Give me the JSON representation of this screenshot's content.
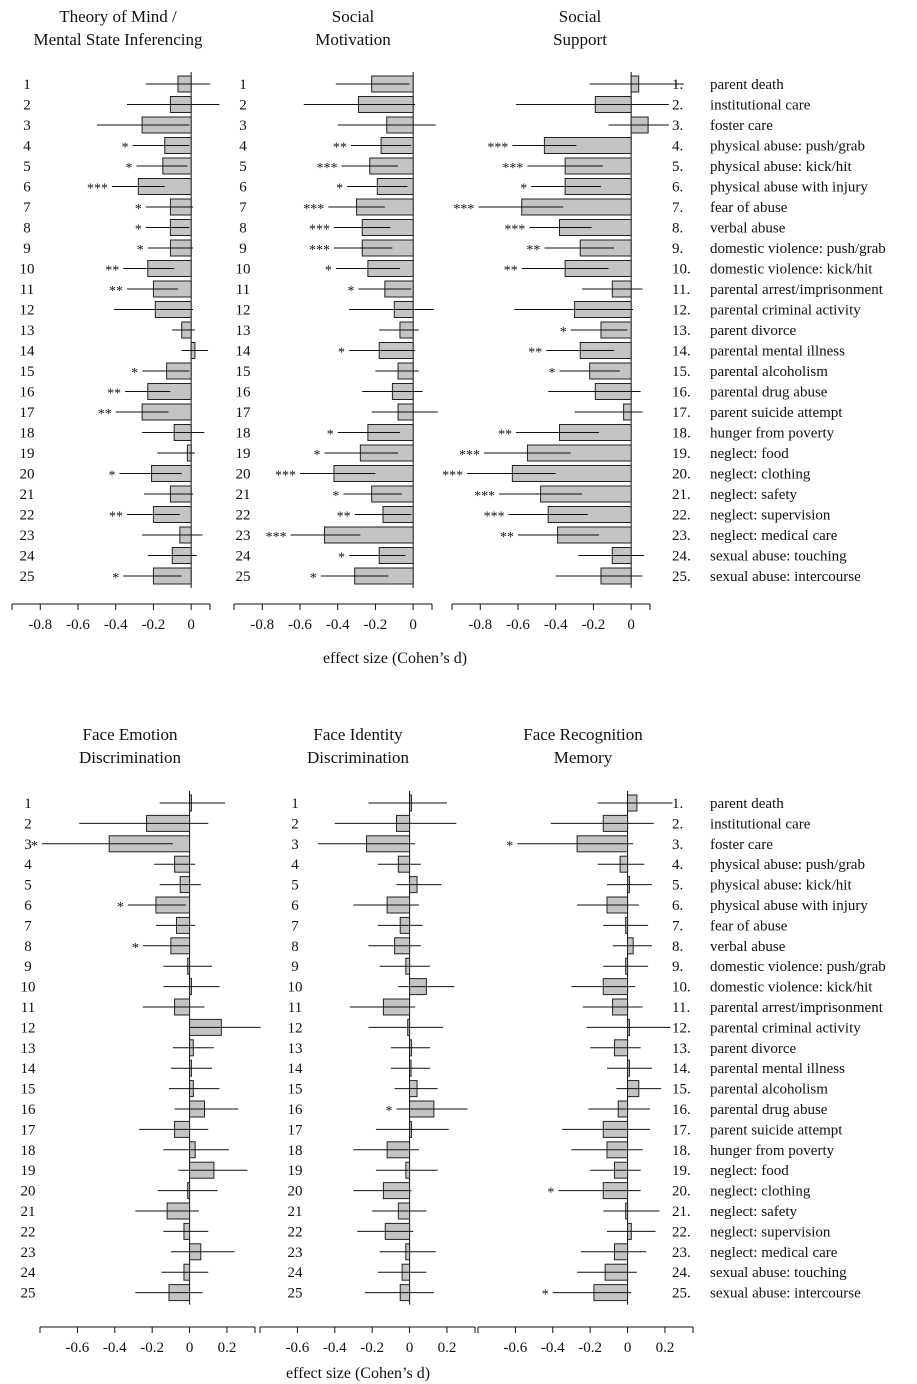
{
  "figure": {
    "top_xlabel": "effect size (Cohen’s d)",
    "bottom_xlabel": "effect size (Cohen’s d)"
  },
  "rows": [
    "1",
    "2",
    "3",
    "4",
    "5",
    "6",
    "7",
    "8",
    "9",
    "10",
    "11",
    "12",
    "13",
    "14",
    "15",
    "16",
    "17",
    "18",
    "19",
    "20",
    "21",
    "22",
    "23",
    "24",
    "25"
  ],
  "labels": [
    {
      "num": "1.",
      "text": "parent death"
    },
    {
      "num": "2.",
      "text": "institutional care"
    },
    {
      "num": "3.",
      "text": "foster care"
    },
    {
      "num": "4.",
      "text": "physical abuse: push/grab"
    },
    {
      "num": "5.",
      "text": "physical abuse: kick/hit"
    },
    {
      "num": "6.",
      "text": "physical abuse with injury"
    },
    {
      "num": "7.",
      "text": "fear of abuse"
    },
    {
      "num": "8.",
      "text": "verbal abuse"
    },
    {
      "num": "9.",
      "text": "domestic violence: push/grab"
    },
    {
      "num": "10.",
      "text": "domestic violence: kick/hit"
    },
    {
      "num": "11.",
      "text": "parental arrest/imprisonment"
    },
    {
      "num": "12.",
      "text": "parental criminal activity"
    },
    {
      "num": "13.",
      "text": "parent divorce"
    },
    {
      "num": "14.",
      "text": "parental mental illness"
    },
    {
      "num": "15.",
      "text": "parental alcoholism"
    },
    {
      "num": "16.",
      "text": "parental drug abuse"
    },
    {
      "num": "17.",
      "text": "parent suicide attempt"
    },
    {
      "num": "18.",
      "text": "hunger from poverty"
    },
    {
      "num": "19.",
      "text": "neglect: food"
    },
    {
      "num": "20.",
      "text": "neglect: clothing"
    },
    {
      "num": "21.",
      "text": "neglect: safety"
    },
    {
      "num": "22.",
      "text": "neglect: supervision"
    },
    {
      "num": "23.",
      "text": "neglect: medical care"
    },
    {
      "num": "24.",
      "text": "sexual abuse: touching"
    },
    {
      "num": "25.",
      "text": "sexual abuse: intercourse"
    }
  ],
  "chart_data": [
    {
      "type": "bar",
      "orientation": "horizontal",
      "title": [
        "Theory of Mind /",
        "Mental State Inferencing"
      ],
      "xlabel": "effect size (Cohen’s d)",
      "xlim": [
        -0.95,
        0.1
      ],
      "xticks": [
        -0.8,
        -0.6,
        -0.4,
        -0.2,
        0
      ],
      "xticklabels": [
        "-0.8",
        "-0.6",
        "-0.4",
        "-0.2",
        "0"
      ],
      "values": [
        -0.07,
        -0.11,
        -0.26,
        -0.14,
        -0.15,
        -0.28,
        -0.11,
        -0.11,
        -0.11,
        -0.23,
        -0.2,
        -0.19,
        -0.05,
        0.02,
        -0.13,
        -0.23,
        -0.26,
        -0.09,
        -0.02,
        -0.21,
        -0.11,
        -0.2,
        -0.06,
        -0.1,
        -0.2
      ],
      "ci_low": [
        -0.24,
        -0.34,
        -0.5,
        -0.31,
        -0.29,
        -0.42,
        -0.24,
        -0.24,
        -0.23,
        -0.36,
        -0.34,
        -0.41,
        -0.1,
        -0.05,
        -0.26,
        -0.35,
        -0.4,
        -0.26,
        -0.18,
        -0.38,
        -0.25,
        -0.34,
        -0.26,
        -0.23,
        -0.36
      ],
      "ci_high": [
        0.1,
        0.15,
        -0.01,
        -0.01,
        -0.02,
        -0.14,
        0.01,
        -0.01,
        0.01,
        -0.09,
        -0.07,
        0.01,
        0.02,
        0.09,
        -0.01,
        -0.11,
        -0.12,
        0.07,
        0.02,
        -0.05,
        0.01,
        -0.06,
        0.06,
        0.03,
        -0.05
      ],
      "significance": [
        "",
        "",
        "",
        "*",
        "*",
        "***",
        "*",
        "*",
        "*",
        "**",
        "**",
        "",
        "",
        "",
        "*",
        "**",
        "**",
        "",
        "",
        "*",
        "",
        "**",
        "",
        "",
        "*"
      ]
    },
    {
      "type": "bar",
      "orientation": "horizontal",
      "title": [
        "Social",
        "Motivation"
      ],
      "xlabel": "effect size (Cohen’s d)",
      "xlim": [
        -0.95,
        0.1
      ],
      "xticks": [
        -0.8,
        -0.6,
        -0.4,
        -0.2,
        0
      ],
      "xticklabels": [
        "-0.8",
        "-0.6",
        "-0.4",
        "-0.2",
        "0"
      ],
      "values": [
        -0.22,
        -0.29,
        -0.14,
        -0.17,
        -0.23,
        -0.19,
        -0.3,
        -0.27,
        -0.27,
        -0.24,
        -0.15,
        -0.1,
        -0.07,
        -0.18,
        -0.08,
        -0.11,
        -0.08,
        -0.24,
        -0.28,
        -0.42,
        -0.22,
        -0.16,
        -0.47,
        -0.18,
        -0.31
      ],
      "ci_low": [
        -0.41,
        -0.58,
        -0.4,
        -0.33,
        -0.38,
        -0.35,
        -0.45,
        -0.42,
        -0.42,
        -0.41,
        -0.29,
        -0.34,
        -0.18,
        -0.34,
        -0.2,
        -0.27,
        -0.22,
        -0.4,
        -0.47,
        -0.6,
        -0.37,
        -0.31,
        -0.65,
        -0.34,
        -0.49
      ],
      "ci_high": [
        -0.02,
        0.01,
        0.12,
        -0.01,
        -0.08,
        -0.03,
        -0.15,
        -0.12,
        -0.11,
        -0.07,
        -0.01,
        0.11,
        0.03,
        0.01,
        0.03,
        0.05,
        0.13,
        -0.07,
        -0.08,
        -0.2,
        -0.06,
        -0.01,
        -0.28,
        -0.04,
        -0.13
      ],
      "significance": [
        "",
        "",
        "",
        "**",
        "***",
        "*",
        "***",
        "***",
        "***",
        "*",
        "*",
        "",
        "",
        "*",
        "",
        "",
        "",
        "*",
        "*",
        "***",
        "*",
        "**",
        "***",
        "*",
        "*"
      ]
    },
    {
      "type": "bar",
      "orientation": "horizontal",
      "title": [
        "Social",
        "Support"
      ],
      "xlabel": "effect size (Cohen’s d)",
      "xlim": [
        -0.95,
        0.1
      ],
      "xticks": [
        -0.8,
        -0.6,
        -0.4,
        -0.2,
        0
      ],
      "xticklabels": [
        "-0.8",
        "-0.6",
        "-0.4",
        "-0.2",
        "0"
      ],
      "values": [
        0.04,
        -0.19,
        0.09,
        -0.46,
        -0.35,
        -0.35,
        -0.58,
        -0.38,
        -0.27,
        -0.35,
        -0.1,
        -0.3,
        -0.16,
        -0.27,
        -0.22,
        -0.19,
        -0.04,
        -0.38,
        -0.55,
        -0.63,
        -0.48,
        -0.44,
        -0.39,
        -0.1,
        -0.16
      ],
      "ci_low": [
        -0.22,
        -0.61,
        -0.12,
        -0.63,
        -0.55,
        -0.53,
        -0.81,
        -0.54,
        -0.46,
        -0.58,
        -0.26,
        -0.62,
        -0.32,
        -0.45,
        -0.38,
        -0.44,
        -0.3,
        -0.61,
        -0.78,
        -0.87,
        -0.7,
        -0.65,
        -0.6,
        -0.28,
        -0.4
      ],
      "ci_high": [
        0.28,
        0.2,
        0.2,
        -0.29,
        -0.15,
        -0.16,
        -0.36,
        -0.21,
        -0.09,
        -0.12,
        0.06,
        0.01,
        -0.02,
        -0.09,
        -0.06,
        0.05,
        0.06,
        -0.17,
        -0.32,
        -0.4,
        -0.26,
        -0.23,
        -0.17,
        0.07,
        0.06
      ],
      "significance": [
        "",
        "",
        "",
        "***",
        "***",
        "*",
        "***",
        "***",
        "**",
        "**",
        "",
        "",
        "*",
        "**",
        "*",
        "",
        "",
        "**",
        "***",
        "***",
        "***",
        "***",
        "**",
        "",
        ""
      ]
    },
    {
      "type": "bar",
      "orientation": "horizontal",
      "title": [
        "Face Emotion",
        "Discrimination"
      ],
      "xlabel": "effect size (Cohen’s d)",
      "xlim": [
        -0.8,
        0.35
      ],
      "xticks": [
        -0.6,
        -0.4,
        -0.2,
        0,
        0.2
      ],
      "xticklabels": [
        "-0.6",
        "-0.4",
        "-0.2",
        "0",
        "0.2"
      ],
      "values": [
        0.01,
        -0.23,
        -0.43,
        -0.08,
        -0.05,
        -0.18,
        -0.07,
        -0.1,
        -0.01,
        0.01,
        -0.08,
        0.17,
        0.02,
        0.01,
        0.02,
        0.08,
        -0.08,
        0.03,
        0.13,
        -0.01,
        -0.12,
        -0.03,
        0.06,
        -0.03,
        -0.11
      ],
      "ci_low": [
        -0.16,
        -0.59,
        -0.79,
        -0.19,
        -0.16,
        -0.33,
        -0.18,
        -0.25,
        -0.14,
        -0.14,
        -0.25,
        0.0,
        -0.09,
        -0.1,
        -0.11,
        -0.08,
        -0.27,
        -0.14,
        -0.06,
        -0.17,
        -0.29,
        -0.14,
        -0.1,
        -0.15,
        -0.29
      ],
      "ci_high": [
        0.19,
        0.1,
        -0.09,
        0.03,
        0.06,
        -0.02,
        0.03,
        0.0,
        0.12,
        0.16,
        0.08,
        0.38,
        0.13,
        0.12,
        0.16,
        0.26,
        0.1,
        0.21,
        0.31,
        0.15,
        0.05,
        0.1,
        0.24,
        0.1,
        0.07
      ],
      "significance": [
        "",
        "",
        "*",
        "",
        "",
        "*",
        "",
        "*",
        "",
        "",
        "",
        "",
        "",
        "",
        "",
        "",
        "",
        "",
        "",
        "",
        "",
        "",
        "",
        "",
        ""
      ]
    },
    {
      "type": "bar",
      "orientation": "horizontal",
      "title": [
        "Face Identity",
        "Discrimination"
      ],
      "xlabel": "",
      "xlim": [
        -0.8,
        0.35
      ],
      "xticks": [
        -0.6,
        -0.4,
        -0.2,
        0,
        0.2
      ],
      "xticklabels": [
        "-0.6",
        "-0.4",
        "-0.2",
        "0",
        "0.2"
      ],
      "values": [
        0.01,
        -0.07,
        -0.23,
        -0.06,
        0.04,
        -0.12,
        -0.05,
        -0.08,
        -0.02,
        0.09,
        -0.14,
        -0.01,
        0.01,
        0.0,
        0.04,
        0.13,
        0.01,
        -0.12,
        -0.02,
        -0.14,
        -0.06,
        -0.13,
        -0.02,
        -0.04,
        -0.05
      ],
      "ci_low": [
        -0.22,
        -0.4,
        -0.49,
        -0.17,
        -0.07,
        -0.3,
        -0.17,
        -0.22,
        -0.16,
        -0.06,
        -0.32,
        -0.22,
        -0.1,
        -0.1,
        -0.08,
        -0.07,
        -0.18,
        -0.3,
        -0.18,
        -0.3,
        -0.2,
        -0.28,
        -0.16,
        -0.17,
        -0.24
      ],
      "ci_high": [
        0.2,
        0.25,
        0.03,
        0.06,
        0.17,
        0.05,
        0.07,
        0.06,
        0.11,
        0.24,
        0.03,
        0.18,
        0.11,
        0.11,
        0.15,
        0.31,
        0.21,
        0.05,
        0.15,
        0.01,
        0.09,
        0.02,
        0.14,
        0.09,
        0.13
      ],
      "significance": [
        "",
        "",
        "",
        "",
        "",
        "",
        "",
        "",
        "",
        "",
        "",
        "",
        "",
        "",
        "",
        "*",
        "",
        "",
        "",
        "",
        "",
        "",
        "",
        "",
        ""
      ]
    },
    {
      "type": "bar",
      "orientation": "horizontal",
      "title": [
        "Face Recognition",
        "Memory"
      ],
      "xlabel": "",
      "xlim": [
        -0.8,
        0.35
      ],
      "xticks": [
        -0.6,
        -0.4,
        -0.2,
        0,
        0.2
      ],
      "xticklabels": [
        "-0.6",
        "-0.4",
        "-0.2",
        "0",
        "0.2"
      ],
      "values": [
        0.05,
        -0.13,
        -0.27,
        -0.04,
        0.01,
        -0.11,
        -0.01,
        0.03,
        -0.01,
        -0.13,
        -0.08,
        0.01,
        -0.07,
        0.01,
        0.06,
        -0.05,
        -0.13,
        -0.11,
        -0.07,
        -0.13,
        -0.01,
        0.02,
        -0.07,
        -0.12,
        -0.18
      ],
      "ci_low": [
        -0.16,
        -0.41,
        -0.59,
        -0.16,
        -0.11,
        -0.27,
        -0.13,
        -0.08,
        -0.13,
        -0.3,
        -0.24,
        -0.22,
        -0.2,
        -0.11,
        -0.06,
        -0.21,
        -0.35,
        -0.3,
        -0.2,
        -0.37,
        -0.13,
        -0.11,
        -0.25,
        -0.27,
        -0.4
      ],
      "ci_high": [
        0.24,
        0.14,
        0.03,
        0.09,
        0.13,
        0.06,
        0.11,
        0.13,
        0.11,
        0.04,
        0.08,
        0.23,
        0.07,
        0.13,
        0.18,
        0.12,
        0.12,
        0.08,
        0.07,
        0.07,
        0.17,
        0.15,
        0.1,
        0.05,
        0.02
      ],
      "significance": [
        "",
        "",
        "*",
        "",
        "",
        "",
        "",
        "",
        "",
        "",
        "",
        "",
        "",
        "",
        "",
        "",
        "",
        "",
        "",
        "*",
        "",
        "",
        "",
        "",
        "*"
      ]
    }
  ]
}
